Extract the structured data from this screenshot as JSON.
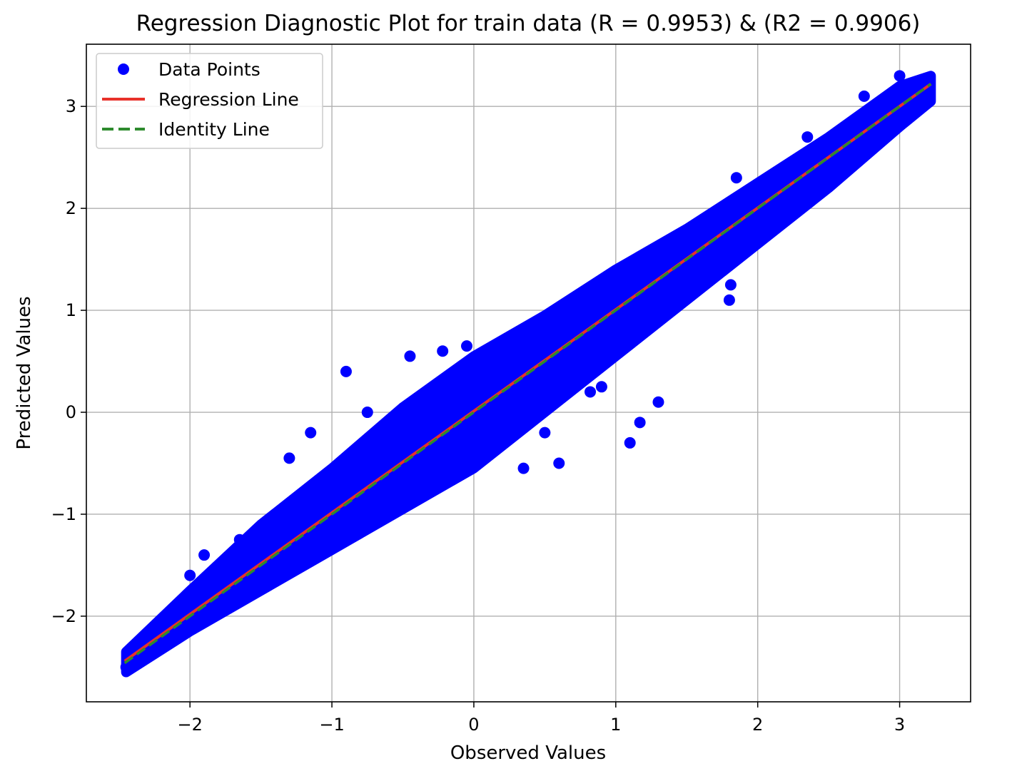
{
  "chart_data": {
    "type": "scatter",
    "title": "Regression Diagnostic Plot for train data (R = 0.9953) & (R2 = 0.9906)",
    "xlabel": "Observed Values",
    "ylabel": "Predicted Values",
    "xlim": [
      -2.73,
      3.5
    ],
    "ylim": [
      -2.84,
      3.61
    ],
    "xticks": [
      -2,
      -1,
      0,
      1,
      2,
      3
    ],
    "yticks": [
      -2,
      -1,
      0,
      1,
      2,
      3
    ],
    "xtick_labels": [
      "−2",
      "−1",
      "0",
      "1",
      "2",
      "3"
    ],
    "ytick_labels": [
      "−2",
      "−1",
      "0",
      "1",
      "2",
      "3"
    ],
    "grid": true,
    "legend_position": "top-left",
    "legend": [
      {
        "label": "Data Points",
        "kind": "marker",
        "color": "#0000ff"
      },
      {
        "label": "Regression Line",
        "kind": "line",
        "color": "#e8312a"
      },
      {
        "label": "Identity Line",
        "kind": "dashed",
        "color": "#2e8b2e"
      }
    ],
    "series": [
      {
        "name": "Data Points",
        "kind": "scatter",
        "color": "#0000ff",
        "x": [
          -2.45,
          -2.4,
          -2.3,
          -2.2,
          -2.1,
          -2.0,
          -1.9,
          -1.8,
          -1.7,
          -1.6,
          -1.5,
          -1.4,
          -1.3,
          -1.2,
          -1.1,
          -1.0,
          -0.9,
          -0.8,
          -0.7,
          -0.6,
          -0.5,
          -0.4,
          -0.3,
          -0.2,
          -0.1,
          0.0,
          0.1,
          0.2,
          0.3,
          0.4,
          0.5,
          0.6,
          0.7,
          0.8,
          0.9,
          1.0,
          1.1,
          1.2,
          1.3,
          1.4,
          1.5,
          1.6,
          1.7,
          1.8,
          1.9,
          2.0,
          2.1,
          2.2,
          2.3,
          2.4,
          2.5,
          2.6,
          2.7,
          2.8,
          2.9,
          3.0,
          3.1,
          3.2,
          -2.0,
          -1.9,
          -1.65,
          -1.3,
          -1.15,
          -0.9,
          -0.75,
          -0.6,
          -0.45,
          -0.22,
          -0.05,
          0.15,
          0.3,
          0.6,
          0.82,
          1.1,
          1.17,
          1.3,
          1.8,
          1.81,
          -1.72,
          -0.85,
          -0.45,
          -0.35,
          0.05,
          0.35,
          0.5,
          0.9,
          1.28,
          1.6,
          1.85,
          2.35,
          2.75,
          3.0
        ],
        "y": [
          -2.5,
          -2.4,
          -2.35,
          -2.25,
          -2.12,
          -2.0,
          -1.92,
          -1.8,
          -1.68,
          -1.6,
          -1.5,
          -1.38,
          -1.3,
          -1.2,
          -1.12,
          -1.0,
          -0.9,
          -0.8,
          -0.72,
          -0.6,
          -0.5,
          -0.42,
          -0.3,
          -0.2,
          -0.12,
          0.0,
          0.1,
          0.2,
          0.3,
          0.38,
          0.5,
          0.6,
          0.7,
          0.8,
          0.9,
          1.0,
          1.1,
          1.2,
          1.3,
          1.4,
          1.5,
          1.6,
          1.7,
          1.8,
          1.9,
          2.0,
          2.1,
          2.2,
          2.3,
          2.4,
          2.5,
          2.6,
          2.7,
          2.8,
          2.9,
          3.0,
          3.1,
          3.2,
          -1.6,
          -1.4,
          -1.25,
          -0.45,
          -0.2,
          0.4,
          0.0,
          -0.15,
          0.55,
          0.6,
          0.65,
          0.45,
          0.3,
          -0.5,
          0.2,
          -0.3,
          -0.1,
          0.1,
          1.1,
          1.25,
          -1.7,
          -1.1,
          -0.9,
          -0.8,
          -0.35,
          -0.55,
          -0.2,
          0.25,
          0.9,
          1.3,
          2.3,
          2.7,
          3.1,
          3.3
        ]
      },
      {
        "name": "Regression Line",
        "kind": "line",
        "color": "#e8312a",
        "x": [
          -2.46,
          3.22
        ],
        "y": [
          -2.44,
          3.22
        ]
      },
      {
        "name": "Identity Line",
        "kind": "dashed",
        "color": "#2e8b2e",
        "x": [
          -2.46,
          3.22
        ],
        "y": [
          -2.46,
          3.22
        ]
      }
    ]
  }
}
